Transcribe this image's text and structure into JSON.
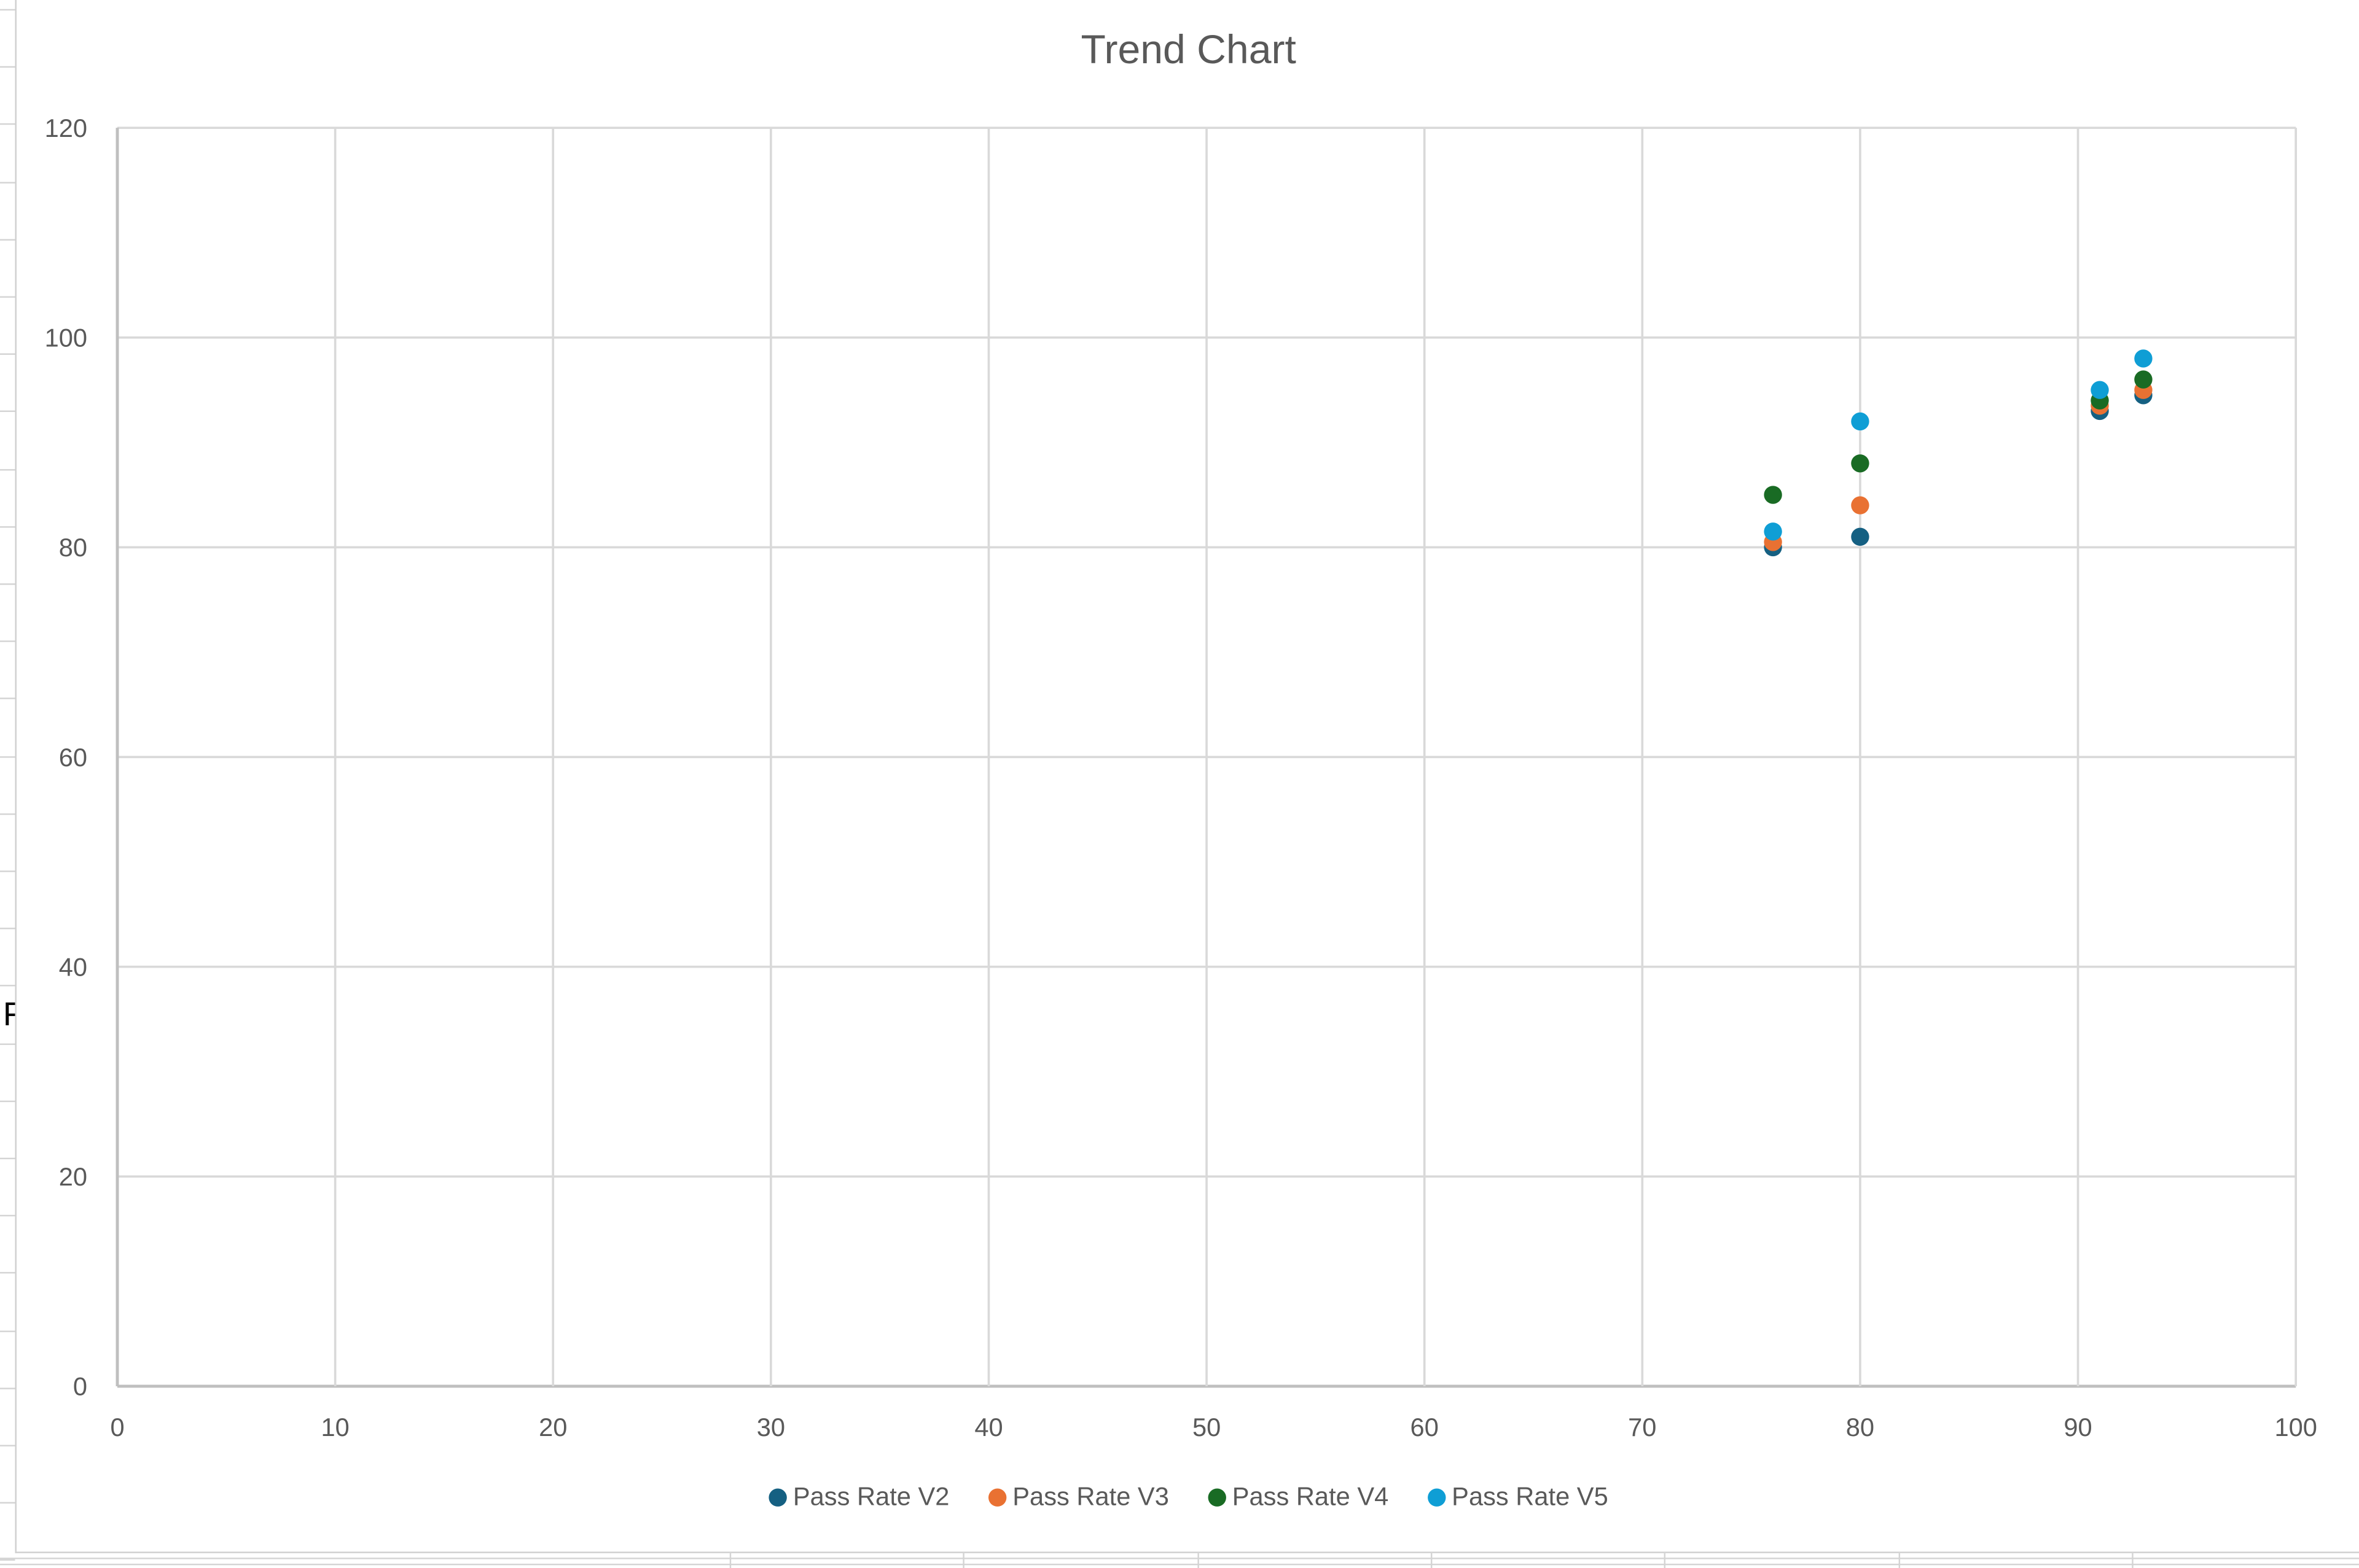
{
  "chart_data": {
    "type": "scatter",
    "title": "Trend Chart",
    "xlabel": "",
    "ylabel": "",
    "xlim": [
      0,
      100
    ],
    "ylim": [
      0,
      120
    ],
    "x_ticks": [
      0,
      10,
      20,
      30,
      40,
      50,
      60,
      70,
      80,
      90,
      100
    ],
    "y_ticks": [
      0,
      20,
      40,
      60,
      80,
      100,
      120
    ],
    "grid": true,
    "legend_position": "bottom",
    "x": [
      76,
      80,
      91,
      93
    ],
    "series": [
      {
        "name": "Pass Rate V2",
        "color": "#156082",
        "values": [
          80,
          81,
          93,
          94.5
        ]
      },
      {
        "name": "Pass Rate V3",
        "color": "#E97132",
        "values": [
          80.5,
          84,
          93.5,
          95
        ]
      },
      {
        "name": "Pass Rate V4",
        "color": "#196B24",
        "values": [
          85,
          88,
          94,
          96
        ]
      },
      {
        "name": "Pass Rate V5",
        "color": "#0F9ED5",
        "values": [
          81.5,
          92,
          95,
          98
        ]
      }
    ]
  },
  "chart": {
    "title": "Trend Chart",
    "legend": [
      "Pass Rate V2",
      "Pass Rate V3",
      "Pass Rate V4",
      "Pass Rate V5"
    ]
  },
  "sheet": {
    "partial_cell_text": "F"
  }
}
